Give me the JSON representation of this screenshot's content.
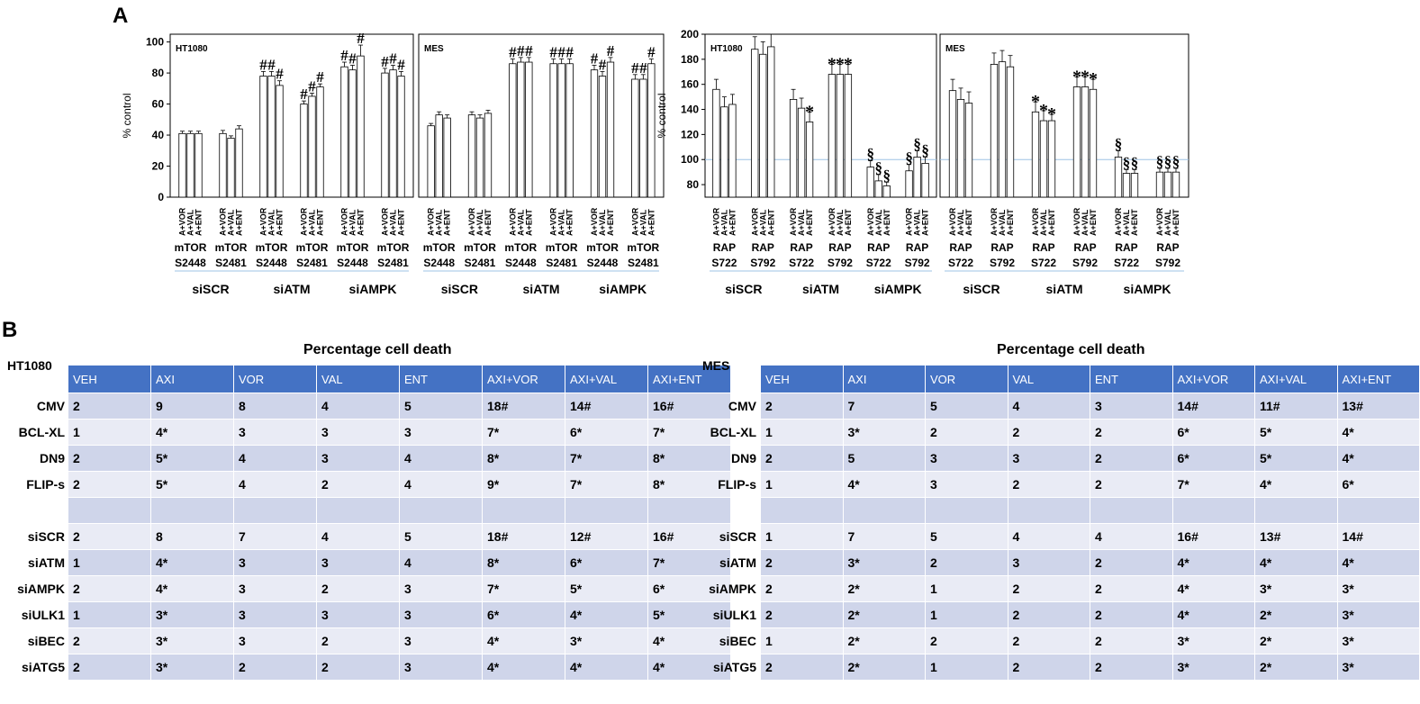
{
  "panel_labels": {
    "a": "A",
    "b": "B"
  },
  "chart_data": [
    {
      "type": "bar",
      "panel": "HT1080-mTOR",
      "title": "HT1080",
      "ylabel": "% control",
      "ylim": [
        0,
        105
      ],
      "yticks": [
        0,
        20,
        40,
        60,
        80,
        100
      ],
      "grid": false,
      "bar_labels": [
        "A+VOR",
        "A+VAL",
        "A+ENT"
      ],
      "group_labels": [
        [
          "mTOR",
          "S2448"
        ],
        [
          "mTOR",
          "S2481"
        ],
        [
          "mTOR",
          "S2448"
        ],
        [
          "mTOR",
          "S2481"
        ],
        [
          "mTOR",
          "S2448"
        ],
        [
          "mTOR",
          "S2481"
        ]
      ],
      "sections": [
        "siSCR",
        "siATM",
        "siAMPK"
      ],
      "series": [
        {
          "name": "siSCR mTOR S2448",
          "values": [
            41,
            41,
            41
          ],
          "errors": [
            1.5,
            1.5,
            1.5
          ],
          "marks": [
            "",
            "",
            ""
          ]
        },
        {
          "name": "siSCR mTOR S2481",
          "values": [
            41,
            38,
            44
          ],
          "errors": [
            2,
            1.5,
            2
          ],
          "marks": [
            "",
            "",
            ""
          ]
        },
        {
          "name": "siATM mTOR S2448",
          "values": [
            78,
            78,
            72
          ],
          "errors": [
            3,
            3,
            3
          ],
          "marks": [
            "#",
            "#",
            "#"
          ]
        },
        {
          "name": "siATM mTOR S2481",
          "values": [
            60,
            65,
            71
          ],
          "errors": [
            2,
            2,
            2
          ],
          "marks": [
            "#",
            "#",
            "#"
          ]
        },
        {
          "name": "siAMPK mTOR S2448",
          "values": [
            84,
            82,
            91
          ],
          "errors": [
            3,
            3,
            7
          ],
          "marks": [
            "#",
            "#",
            "#"
          ]
        },
        {
          "name": "siAMPK mTOR S2481",
          "values": [
            80,
            82,
            78
          ],
          "errors": [
            3,
            3,
            3
          ],
          "marks": [
            "#",
            "#",
            "#"
          ]
        }
      ]
    },
    {
      "type": "bar",
      "panel": "MES-mTOR",
      "title": "MES",
      "ylabel": "",
      "ylim": [
        0,
        105
      ],
      "yticks": [],
      "grid": false,
      "bar_labels": [
        "A+VOR",
        "A+VAL",
        "A+ENT"
      ],
      "group_labels": [
        [
          "mTOR",
          "S2448"
        ],
        [
          "mTOR",
          "S2481"
        ],
        [
          "mTOR",
          "S2448"
        ],
        [
          "mTOR",
          "S2481"
        ],
        [
          "mTOR",
          "S2448"
        ],
        [
          "mTOR",
          "S2481"
        ]
      ],
      "sections": [
        "siSCR",
        "siATM",
        "siAMPK"
      ],
      "series": [
        {
          "name": "siSCR mTOR S2448",
          "values": [
            46,
            53,
            51
          ],
          "errors": [
            1.5,
            2,
            2
          ],
          "marks": [
            "",
            "",
            ""
          ]
        },
        {
          "name": "siSCR mTOR S2481",
          "values": [
            53,
            51,
            54
          ],
          "errors": [
            2,
            2,
            2
          ],
          "marks": [
            "",
            "",
            ""
          ]
        },
        {
          "name": "siATM mTOR S2448",
          "values": [
            86,
            87,
            87
          ],
          "errors": [
            3,
            3,
            3
          ],
          "marks": [
            "#",
            "#",
            "#"
          ]
        },
        {
          "name": "siATM mTOR S2481",
          "values": [
            86,
            86,
            86
          ],
          "errors": [
            3,
            3,
            3
          ],
          "marks": [
            "#",
            "#",
            "#"
          ]
        },
        {
          "name": "siAMPK mTOR S2448",
          "values": [
            82,
            78,
            87
          ],
          "errors": [
            3,
            3,
            3
          ],
          "marks": [
            "#",
            "#",
            "#"
          ]
        },
        {
          "name": "siAMPK mTOR S2481",
          "values": [
            76,
            76,
            86
          ],
          "errors": [
            3,
            3,
            3
          ],
          "marks": [
            "#",
            "#",
            "#"
          ]
        }
      ]
    },
    {
      "type": "bar",
      "panel": "HT1080-RAPTOR",
      "title": "HT1080",
      "ylabel": "% control",
      "ylim": [
        70,
        200
      ],
      "yticks": [
        80,
        100,
        120,
        140,
        160,
        180,
        200
      ],
      "reference_line": 100,
      "grid": false,
      "bar_labels": [
        "A+VOR",
        "A+VAL",
        "A+ENT"
      ],
      "group_labels": [
        [
          "RAP",
          "S722"
        ],
        [
          "RAP",
          "S792"
        ],
        [
          "RAP",
          "S722"
        ],
        [
          "RAP",
          "S792"
        ],
        [
          "RAP",
          "S722"
        ],
        [
          "RAP",
          "S792"
        ]
      ],
      "sections": [
        "siSCR",
        "siATM",
        "siAMPK"
      ],
      "series": [
        {
          "name": "siSCR RAP S722",
          "values": [
            156,
            142,
            144
          ],
          "errors": [
            8,
            8,
            8
          ],
          "marks": [
            "",
            "",
            ""
          ]
        },
        {
          "name": "siSCR RAP S792",
          "values": [
            188,
            184,
            190
          ],
          "errors": [
            10,
            10,
            10
          ],
          "marks": [
            "",
            "",
            ""
          ]
        },
        {
          "name": "siATM RAP S722",
          "values": [
            148,
            141,
            130
          ],
          "errors": [
            8,
            8,
            8
          ],
          "marks": [
            "",
            "",
            "*"
          ]
        },
        {
          "name": "siATM RAP S792",
          "values": [
            168,
            168,
            168
          ],
          "errors": [
            8,
            8,
            8
          ],
          "marks": [
            "*",
            "*",
            "*"
          ]
        },
        {
          "name": "siAMPK RAP S722",
          "values": [
            94,
            83,
            79
          ],
          "errors": [
            5,
            5,
            3
          ],
          "marks": [
            "§",
            "§",
            "§"
          ]
        },
        {
          "name": "siAMPK RAP S792",
          "values": [
            91,
            102,
            97
          ],
          "errors": [
            5,
            5,
            5
          ],
          "marks": [
            "§",
            "§",
            "§"
          ]
        }
      ]
    },
    {
      "type": "bar",
      "panel": "MES-RAPTOR",
      "title": "MES",
      "ylabel": "",
      "ylim": [
        70,
        200
      ],
      "yticks": [],
      "reference_line": 100,
      "grid": false,
      "bar_labels": [
        "A+VOR",
        "A+VAL",
        "A+ENT"
      ],
      "group_labels": [
        [
          "RAP",
          "S722"
        ],
        [
          "RAP",
          "S792"
        ],
        [
          "RAP",
          "S722"
        ],
        [
          "RAP",
          "S792"
        ],
        [
          "RAP",
          "S722"
        ],
        [
          "RAP",
          "S792"
        ]
      ],
      "sections": [
        "siSCR",
        "siATM",
        "siAMPK"
      ],
      "series": [
        {
          "name": "siSCR RAP S722",
          "values": [
            155,
            148,
            145
          ],
          "errors": [
            9,
            9,
            9
          ],
          "marks": [
            "",
            "",
            ""
          ]
        },
        {
          "name": "siSCR RAP S792",
          "values": [
            176,
            178,
            174
          ],
          "errors": [
            9,
            9,
            9
          ],
          "marks": [
            "",
            "",
            ""
          ]
        },
        {
          "name": "siATM RAP S722",
          "values": [
            138,
            131,
            131
          ],
          "errors": [
            8,
            8,
            5
          ],
          "marks": [
            "*",
            "*",
            "*"
          ]
        },
        {
          "name": "siATM RAP S792",
          "values": [
            158,
            158,
            156
          ],
          "errors": [
            8,
            8,
            8
          ],
          "marks": [
            "*",
            "*",
            "*"
          ]
        },
        {
          "name": "siAMPK RAP S722",
          "values": [
            102,
            89,
            89
          ],
          "errors": [
            5,
            3,
            3
          ],
          "marks": [
            "§",
            "§",
            "§"
          ]
        },
        {
          "name": "siAMPK RAP S792",
          "values": [
            90,
            90,
            90
          ],
          "errors": [
            3,
            3,
            3
          ],
          "marks": [
            "§",
            "§",
            "§"
          ]
        }
      ]
    },
    {
      "type": "table",
      "panel": "B-left",
      "title": "Percentage cell death",
      "corner": "HT1080",
      "columns": [
        "VEH",
        "AXI",
        "VOR",
        "VAL",
        "ENT",
        "AXI+VOR",
        "AXI+VAL",
        "AXI+ENT"
      ],
      "rows": [
        {
          "label": "CMV",
          "cells": [
            "2",
            "9",
            "8",
            "4",
            "5",
            "18#",
            "14#",
            "16#"
          ]
        },
        {
          "label": "BCL-XL",
          "cells": [
            "1",
            "4*",
            "3",
            "3",
            "3",
            "7*",
            "6*",
            "7*"
          ]
        },
        {
          "label": "DN9",
          "cells": [
            "2",
            "5*",
            "4",
            "3",
            "4",
            "8*",
            "7*",
            "8*"
          ]
        },
        {
          "label": "FLIP-s",
          "cells": [
            "2",
            "5*",
            "4",
            "2",
            "4",
            "9*",
            "7*",
            "8*"
          ]
        },
        {
          "label": "",
          "cells": [
            "",
            "",
            "",
            "",
            "",
            "",
            "",
            ""
          ]
        },
        {
          "label": "siSCR",
          "cells": [
            "2",
            "8",
            "7",
            "4",
            "5",
            "18#",
            "12#",
            "16#"
          ]
        },
        {
          "label": "siATM",
          "cells": [
            "1",
            "4*",
            "3",
            "3",
            "4",
            "8*",
            "6*",
            "7*"
          ]
        },
        {
          "label": "siAMPK",
          "cells": [
            "2",
            "4*",
            "3",
            "2",
            "3",
            "7*",
            "5*",
            "6*"
          ]
        },
        {
          "label": "siULK1",
          "cells": [
            "1",
            "3*",
            "3",
            "3",
            "3",
            "6*",
            "4*",
            "5*"
          ]
        },
        {
          "label": "siBEC",
          "cells": [
            "2",
            "3*",
            "3",
            "2",
            "3",
            "4*",
            "3*",
            "4*"
          ]
        },
        {
          "label": "siATG5",
          "cells": [
            "2",
            "3*",
            "2",
            "2",
            "3",
            "4*",
            "4*",
            "4*"
          ]
        }
      ]
    },
    {
      "type": "table",
      "panel": "B-right",
      "title": "Percentage cell death",
      "corner": "MES",
      "columns": [
        "VEH",
        "AXI",
        "VOR",
        "VAL",
        "ENT",
        "AXI+VOR",
        "AXI+VAL",
        "AXI+ENT"
      ],
      "rows": [
        {
          "label": "CMV",
          "cells": [
            "2",
            "7",
            "5",
            "4",
            "3",
            "14#",
            "11#",
            "13#"
          ]
        },
        {
          "label": "BCL-XL",
          "cells": [
            "1",
            "3*",
            "2",
            "2",
            "2",
            "6*",
            "5*",
            "4*"
          ]
        },
        {
          "label": "DN9",
          "cells": [
            "2",
            "5",
            "3",
            "3",
            "2",
            "6*",
            "5*",
            "4*"
          ]
        },
        {
          "label": "FLIP-s",
          "cells": [
            "1",
            "4*",
            "3",
            "2",
            "2",
            "7*",
            "4*",
            "6*"
          ]
        },
        {
          "label": "",
          "cells": [
            "",
            "",
            "",
            "",
            "",
            "",
            "",
            ""
          ]
        },
        {
          "label": "siSCR",
          "cells": [
            "1",
            "7",
            "5",
            "4",
            "4",
            "16#",
            "13#",
            "14#"
          ]
        },
        {
          "label": "siATM",
          "cells": [
            "2",
            "3*",
            "2",
            "3",
            "2",
            "4*",
            "4*",
            "4*"
          ]
        },
        {
          "label": "siAMPK",
          "cells": [
            "2",
            "2*",
            "1",
            "2",
            "2",
            "4*",
            "3*",
            "3*"
          ]
        },
        {
          "label": "siULK1",
          "cells": [
            "2",
            "2*",
            "1",
            "2",
            "2",
            "4*",
            "2*",
            "3*"
          ]
        },
        {
          "label": "siBEC",
          "cells": [
            "1",
            "2*",
            "2",
            "2",
            "2",
            "3*",
            "2*",
            "3*"
          ]
        },
        {
          "label": "siATG5",
          "cells": [
            "2",
            "2*",
            "1",
            "2",
            "2",
            "3*",
            "2*",
            "3*"
          ]
        }
      ]
    }
  ]
}
